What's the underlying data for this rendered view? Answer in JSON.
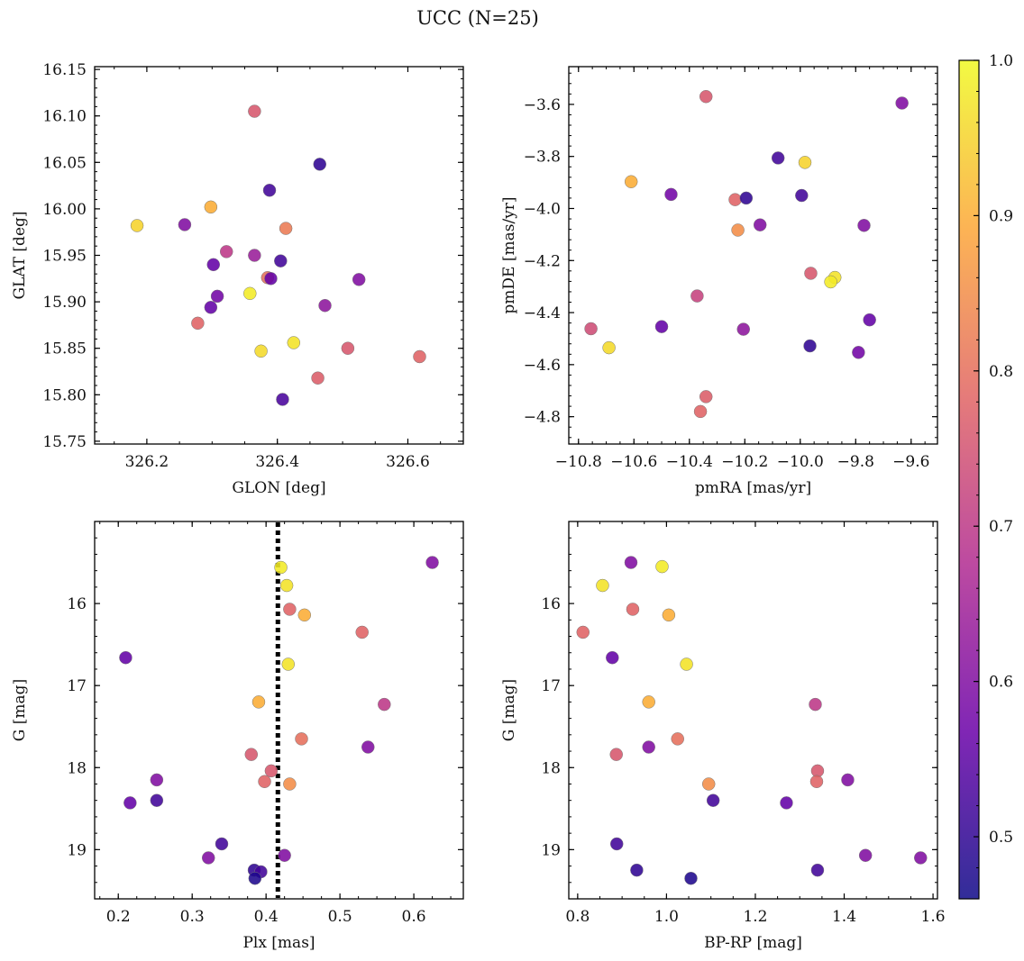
{
  "title": "UCC (N=25)",
  "colorbar": {
    "min": 0.46,
    "max": 1.0,
    "ticks": [
      "0.5",
      "0.6",
      "0.7",
      "0.8",
      "0.9",
      "1.0"
    ],
    "colormap": "plasma",
    "colors": [
      "#0d0887",
      "#6a00a8",
      "#b12a90",
      "#e16462",
      "#fca636",
      "#f0f921"
    ]
  },
  "chart_data": [
    {
      "type": "scatter",
      "xlabel": "GLON [deg]",
      "ylabel": "GLAT [deg]",
      "xlim": [
        326.12,
        326.685
      ],
      "ylim": [
        15.747,
        16.153
      ],
      "xticks": [
        "326.2",
        "326.4",
        "326.6"
      ],
      "yticks": [
        "15.75",
        "15.80",
        "15.85",
        "15.90",
        "15.95",
        "16.00",
        "16.05",
        "16.10",
        "16.15"
      ],
      "points": [
        {
          "x": 326.365,
          "y": 16.105,
          "c": 0.76
        },
        {
          "x": 326.465,
          "y": 16.048,
          "c": 0.5
        },
        {
          "x": 326.388,
          "y": 16.02,
          "c": 0.52
        },
        {
          "x": 326.185,
          "y": 15.982,
          "c": 0.95
        },
        {
          "x": 326.258,
          "y": 15.983,
          "c": 0.6
        },
        {
          "x": 326.298,
          "y": 16.002,
          "c": 0.9
        },
        {
          "x": 326.413,
          "y": 15.979,
          "c": 0.82
        },
        {
          "x": 326.322,
          "y": 15.954,
          "c": 0.7
        },
        {
          "x": 326.365,
          "y": 15.95,
          "c": 0.64
        },
        {
          "x": 326.302,
          "y": 15.94,
          "c": 0.56
        },
        {
          "x": 326.405,
          "y": 15.944,
          "c": 0.52
        },
        {
          "x": 326.385,
          "y": 15.926,
          "c": 0.8
        },
        {
          "x": 326.39,
          "y": 15.925,
          "c": 0.56
        },
        {
          "x": 326.525,
          "y": 15.924,
          "c": 0.6
        },
        {
          "x": 326.308,
          "y": 15.906,
          "c": 0.58
        },
        {
          "x": 326.358,
          "y": 15.909,
          "c": 0.98
        },
        {
          "x": 326.298,
          "y": 15.894,
          "c": 0.56
        },
        {
          "x": 326.473,
          "y": 15.896,
          "c": 0.62
        },
        {
          "x": 326.278,
          "y": 15.877,
          "c": 0.78
        },
        {
          "x": 326.425,
          "y": 15.856,
          "c": 0.97
        },
        {
          "x": 326.375,
          "y": 15.847,
          "c": 0.96
        },
        {
          "x": 326.508,
          "y": 15.85,
          "c": 0.76
        },
        {
          "x": 326.618,
          "y": 15.841,
          "c": 0.78
        },
        {
          "x": 326.462,
          "y": 15.818,
          "c": 0.77
        },
        {
          "x": 326.408,
          "y": 15.795,
          "c": 0.53
        }
      ]
    },
    {
      "type": "scatter",
      "xlabel": "pmRA [mas/yr]",
      "ylabel": "pmDE [mas/yr]",
      "xlim": [
        -10.835,
        -9.505
      ],
      "ylim": [
        -4.905,
        -3.455
      ],
      "xticks": [
        "−10.8",
        "−10.6",
        "−10.4",
        "−10.2",
        "−10.0",
        "−9.8",
        "−9.6"
      ],
      "yticks": [
        "−4.8",
        "−4.6",
        "−4.4",
        "−4.2",
        "−4.0",
        "−3.8",
        "−3.6"
      ],
      "points": [
        {
          "x": -10.34,
          "y": -3.57,
          "c": 0.76
        },
        {
          "x": -9.633,
          "y": -3.595,
          "c": 0.6
        },
        {
          "x": -10.08,
          "y": -3.806,
          "c": 0.52
        },
        {
          "x": -9.983,
          "y": -3.823,
          "c": 0.95
        },
        {
          "x": -10.61,
          "y": -3.897,
          "c": 0.9
        },
        {
          "x": -10.466,
          "y": -3.946,
          "c": 0.58
        },
        {
          "x": -10.235,
          "y": -3.966,
          "c": 0.78
        },
        {
          "x": -10.195,
          "y": -3.96,
          "c": 0.5
        },
        {
          "x": -9.995,
          "y": -3.95,
          "c": 0.52
        },
        {
          "x": -10.225,
          "y": -4.083,
          "c": 0.85
        },
        {
          "x": -10.145,
          "y": -4.063,
          "c": 0.6
        },
        {
          "x": -9.77,
          "y": -4.065,
          "c": 0.6
        },
        {
          "x": -9.962,
          "y": -4.249,
          "c": 0.76
        },
        {
          "x": -9.875,
          "y": -4.265,
          "c": 0.97
        },
        {
          "x": -9.89,
          "y": -4.282,
          "c": 0.98
        },
        {
          "x": -10.372,
          "y": -4.336,
          "c": 0.72
        },
        {
          "x": -9.75,
          "y": -4.428,
          "c": 0.56
        },
        {
          "x": -10.755,
          "y": -4.462,
          "c": 0.74
        },
        {
          "x": -10.5,
          "y": -4.454,
          "c": 0.56
        },
        {
          "x": -10.205,
          "y": -4.464,
          "c": 0.62
        },
        {
          "x": -10.69,
          "y": -4.535,
          "c": 0.96
        },
        {
          "x": -9.965,
          "y": -4.528,
          "c": 0.5
        },
        {
          "x": -9.79,
          "y": -4.553,
          "c": 0.58
        },
        {
          "x": -10.34,
          "y": -4.723,
          "c": 0.77
        },
        {
          "x": -10.36,
          "y": -4.78,
          "c": 0.78
        }
      ]
    },
    {
      "type": "scatter",
      "xlabel": "Plx [mas]",
      "ylabel": "G [mag]",
      "xlim": [
        0.168,
        0.667
      ],
      "ylim": [
        19.6,
        15.0
      ],
      "y_inverted": true,
      "xticks": [
        "0.2",
        "0.3",
        "0.4",
        "0.5",
        "0.6"
      ],
      "yticks": [
        "16",
        "17",
        "18",
        "19"
      ],
      "vline": {
        "x": 0.416,
        "style": "dotted"
      },
      "points": [
        {
          "x": 0.42,
          "y": 15.56,
          "c": 0.98
        },
        {
          "x": 0.625,
          "y": 15.5,
          "c": 0.6
        },
        {
          "x": 0.428,
          "y": 15.78,
          "c": 0.97
        },
        {
          "x": 0.432,
          "y": 16.07,
          "c": 0.78
        },
        {
          "x": 0.452,
          "y": 16.14,
          "c": 0.9
        },
        {
          "x": 0.53,
          "y": 16.35,
          "c": 0.78
        },
        {
          "x": 0.21,
          "y": 16.66,
          "c": 0.56
        },
        {
          "x": 0.43,
          "y": 16.74,
          "c": 0.97
        },
        {
          "x": 0.39,
          "y": 17.2,
          "c": 0.9
        },
        {
          "x": 0.56,
          "y": 17.23,
          "c": 0.7
        },
        {
          "x": 0.448,
          "y": 17.65,
          "c": 0.8
        },
        {
          "x": 0.538,
          "y": 17.75,
          "c": 0.6
        },
        {
          "x": 0.38,
          "y": 17.84,
          "c": 0.76
        },
        {
          "x": 0.407,
          "y": 18.04,
          "c": 0.76
        },
        {
          "x": 0.252,
          "y": 18.15,
          "c": 0.6
        },
        {
          "x": 0.398,
          "y": 18.17,
          "c": 0.78
        },
        {
          "x": 0.432,
          "y": 18.2,
          "c": 0.85
        },
        {
          "x": 0.216,
          "y": 18.43,
          "c": 0.56
        },
        {
          "x": 0.252,
          "y": 18.4,
          "c": 0.52
        },
        {
          "x": 0.34,
          "y": 18.93,
          "c": 0.52
        },
        {
          "x": 0.322,
          "y": 19.1,
          "c": 0.6
        },
        {
          "x": 0.425,
          "y": 19.07,
          "c": 0.6
        },
        {
          "x": 0.384,
          "y": 19.25,
          "c": 0.5
        },
        {
          "x": 0.393,
          "y": 19.27,
          "c": 0.52
        },
        {
          "x": 0.385,
          "y": 19.35,
          "c": 0.48
        }
      ]
    },
    {
      "type": "scatter",
      "xlabel": "BP-RP [mag]",
      "ylabel": "G [mag]",
      "xlim": [
        0.78,
        1.61
      ],
      "ylim": [
        19.6,
        15.0
      ],
      "y_inverted": true,
      "xticks": [
        "0.8",
        "1.0",
        "1.2",
        "1.4",
        "1.6"
      ],
      "yticks": [
        "16",
        "17",
        "18",
        "19"
      ],
      "points": [
        {
          "x": 0.92,
          "y": 15.5,
          "c": 0.6
        },
        {
          "x": 0.99,
          "y": 15.55,
          "c": 0.98
        },
        {
          "x": 0.856,
          "y": 15.78,
          "c": 0.97
        },
        {
          "x": 0.924,
          "y": 16.07,
          "c": 0.78
        },
        {
          "x": 1.005,
          "y": 16.14,
          "c": 0.9
        },
        {
          "x": 0.812,
          "y": 16.35,
          "c": 0.78
        },
        {
          "x": 0.878,
          "y": 16.66,
          "c": 0.56
        },
        {
          "x": 1.045,
          "y": 16.74,
          "c": 0.97
        },
        {
          "x": 0.96,
          "y": 17.2,
          "c": 0.9
        },
        {
          "x": 1.335,
          "y": 17.23,
          "c": 0.7
        },
        {
          "x": 1.025,
          "y": 17.65,
          "c": 0.8
        },
        {
          "x": 0.96,
          "y": 17.75,
          "c": 0.6
        },
        {
          "x": 0.887,
          "y": 17.84,
          "c": 0.76
        },
        {
          "x": 1.34,
          "y": 18.04,
          "c": 0.76
        },
        {
          "x": 1.408,
          "y": 18.15,
          "c": 0.6
        },
        {
          "x": 1.338,
          "y": 18.17,
          "c": 0.78
        },
        {
          "x": 1.095,
          "y": 18.2,
          "c": 0.85
        },
        {
          "x": 1.105,
          "y": 18.4,
          "c": 0.52
        },
        {
          "x": 1.27,
          "y": 18.43,
          "c": 0.56
        },
        {
          "x": 0.888,
          "y": 18.93,
          "c": 0.52
        },
        {
          "x": 1.448,
          "y": 19.07,
          "c": 0.6
        },
        {
          "x": 1.572,
          "y": 19.1,
          "c": 0.6
        },
        {
          "x": 0.933,
          "y": 19.25,
          "c": 0.5
        },
        {
          "x": 1.34,
          "y": 19.25,
          "c": 0.52
        },
        {
          "x": 1.055,
          "y": 19.35,
          "c": 0.48
        }
      ]
    }
  ]
}
